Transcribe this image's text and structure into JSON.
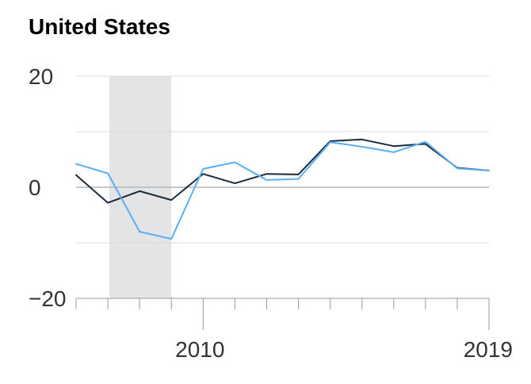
{
  "chart_data": {
    "type": "line",
    "title": "United States",
    "xlabel": "",
    "ylabel": "",
    "x": [
      2006,
      2007,
      2008,
      2009,
      2010,
      2011,
      2012,
      2013,
      2014,
      2015,
      2016,
      2017,
      2018,
      2019
    ],
    "series": [
      {
        "color": "#1a2a3a",
        "values": [
          2.2,
          -2.8,
          -0.7,
          -2.3,
          2.4,
          0.7,
          2.4,
          2.3,
          8.3,
          8.6,
          7.4,
          7.8,
          3.5,
          3.0
        ]
      },
      {
        "color": "#5aaef5",
        "values": [
          4.2,
          2.5,
          -8.0,
          -9.3,
          3.3,
          4.5,
          1.3,
          1.5,
          8.1,
          7.3,
          6.3,
          8.2,
          3.4,
          3.0
        ]
      }
    ],
    "xlim": [
      2006,
      2019
    ],
    "ylim": [
      -20,
      20
    ],
    "yticks": [
      20,
      0,
      -20
    ],
    "ytick_labels": [
      "20",
      "0",
      "−20"
    ],
    "xtick_labels": [
      {
        "x": 2010,
        "label": "2010"
      },
      {
        "x": 2019,
        "label": "2019"
      }
    ],
    "recession_shading": {
      "x_start": 2007.05,
      "x_end": 2009.0,
      "color": "#e3e4e6"
    },
    "grid": true
  }
}
